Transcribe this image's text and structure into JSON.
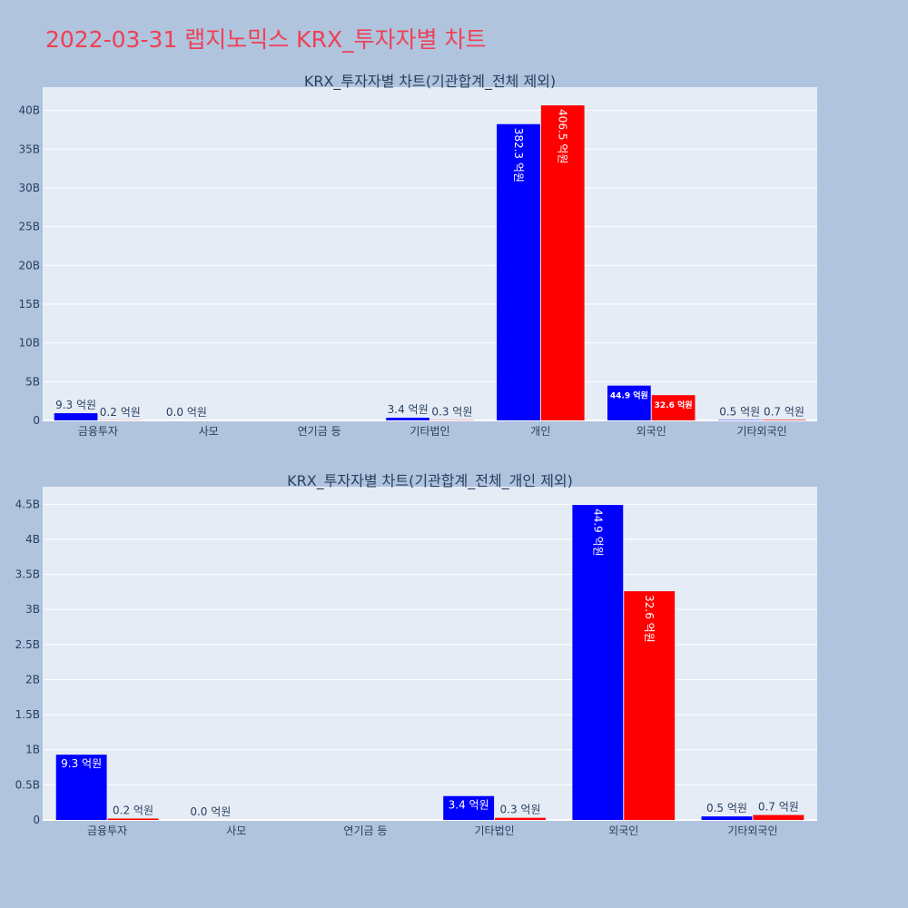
{
  "page": {
    "title": "2022-03-31 랩지노믹스 KRX_투자자별 차트"
  },
  "colors": {
    "background": "#b0c4de",
    "plot_bg": "#e5ecf6",
    "buy": "#0000ff",
    "sell": "#ff0000",
    "title": "#ef4055",
    "text": "#2a3f5f"
  },
  "chart_data": [
    {
      "type": "bar",
      "title": "KRX_투자자별 차트(기관합계_전체 제외)",
      "categories": [
        "금융투자",
        "사모",
        "연기금 등",
        "기타법인",
        "개인",
        "외국인",
        "기타외국인"
      ],
      "series": [
        {
          "values": [
            0.93,
            0.0,
            0,
            0.34,
            38.23,
            4.49,
            0.05
          ],
          "labels": [
            "9.3 억원",
            "0.0 억원",
            "",
            "3.4 억원",
            "382.3 억원",
            "44.9 억원",
            "0.5 억원"
          ]
        },
        {
          "values": [
            0.02,
            0,
            0,
            0.03,
            40.65,
            3.26,
            0.07
          ],
          "labels": [
            "0.2 억원",
            "",
            "",
            "0.3 억원",
            "406.5 억원",
            "32.6 억원",
            "0.7 억원"
          ]
        }
      ],
      "yticks": [
        "0",
        "5B",
        "10B",
        "15B",
        "20B",
        "25B",
        "30B",
        "35B",
        "40B"
      ],
      "ytick_values": [
        0,
        5,
        10,
        15,
        20,
        25,
        30,
        35,
        40
      ],
      "ylim": [
        0,
        43
      ]
    },
    {
      "type": "bar",
      "title": "KRX_투자자별 차트(기관합계_전체_개인 제외)",
      "categories": [
        "금융투자",
        "사모",
        "연기금 등",
        "기타법인",
        "외국인",
        "기타외국인"
      ],
      "series": [
        {
          "values": [
            0.93,
            0.0,
            0,
            0.34,
            4.49,
            0.05
          ],
          "labels": [
            "9.3 억원",
            "0.0 억원",
            "",
            "3.4 억원",
            "44.9 억원",
            "0.5 억원"
          ]
        },
        {
          "values": [
            0.02,
            0,
            0,
            0.03,
            3.26,
            0.07
          ],
          "labels": [
            "0.2 억원",
            "",
            "",
            "0.3 억원",
            "32.6 억원",
            "0.7 억원"
          ]
        }
      ],
      "yticks": [
        "0",
        "0.5B",
        "1B",
        "1.5B",
        "2B",
        "2.5B",
        "3B",
        "3.5B",
        "4B",
        "4.5B"
      ],
      "ytick_values": [
        0,
        0.5,
        1,
        1.5,
        2,
        2.5,
        3,
        3.5,
        4,
        4.5
      ],
      "ylim": [
        0,
        4.75
      ]
    }
  ]
}
